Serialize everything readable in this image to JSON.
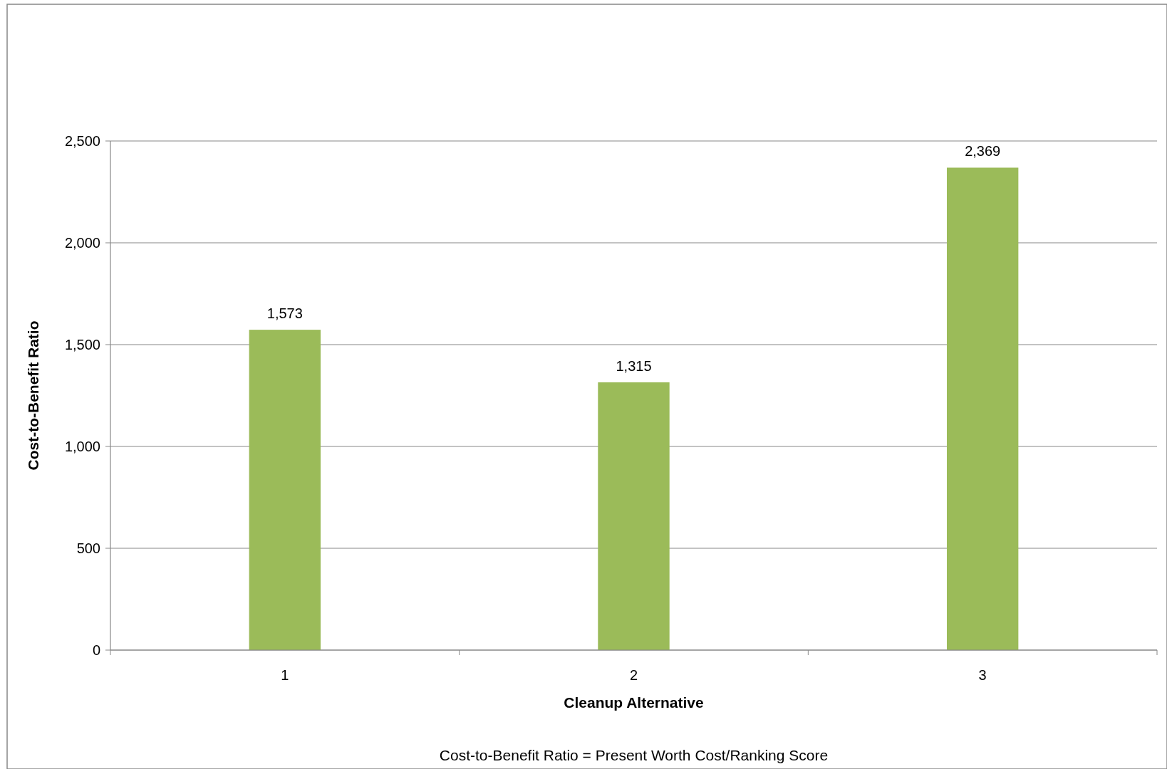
{
  "chart_data": {
    "type": "bar",
    "xlabel": "Cleanup Alternative",
    "ylabel": "Cost-to-Benefit Ratio",
    "categories": [
      "1",
      "2",
      "3"
    ],
    "values": [
      1573,
      1315,
      2369
    ],
    "color": "#9bbb59",
    "ylim": [
      0,
      2500
    ],
    "yticks": [
      0,
      500,
      {
        "value": 1000,
        "label": "1,000"
      },
      {
        "value": 1500,
        "label": "1,500"
      },
      {
        "value": 2000,
        "label": "2,000"
      },
      {
        "value": 2500,
        "label": "2,500"
      }
    ],
    "grid": "y",
    "value_labels": [
      "1,573",
      "1,315",
      "2,369"
    ],
    "annotations": [
      "Cost-to-Benefit Ratio = Present Worth Cost/Ranking Score"
    ]
  }
}
